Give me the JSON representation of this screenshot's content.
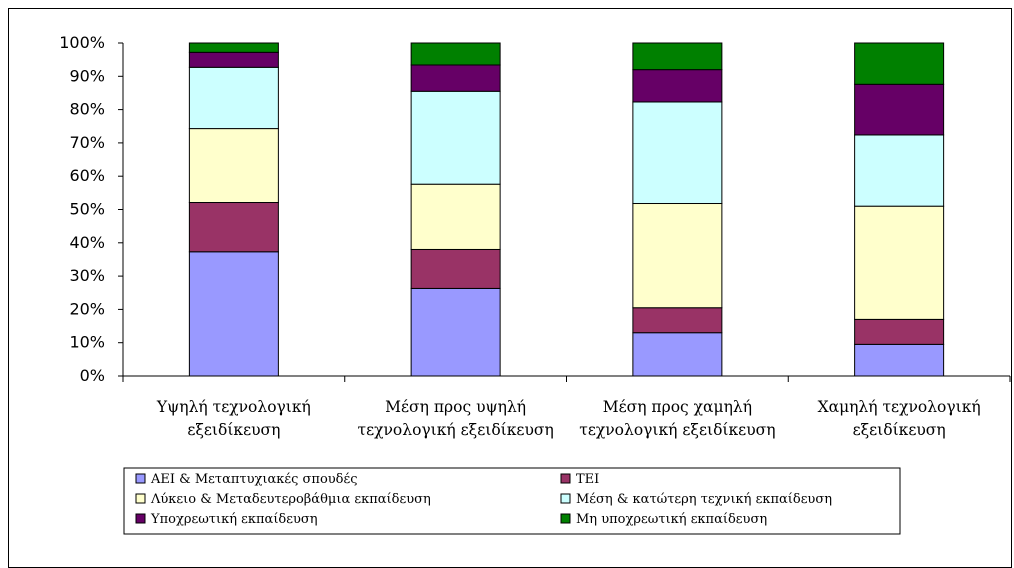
{
  "chart_data": {
    "type": "bar",
    "stacked": "percent",
    "categories": [
      [
        "Υψηλή τεχνολογική",
        "εξειδίκευση"
      ],
      [
        "Μέση προς υψηλή",
        "τεχνολογική εξειδίκευση"
      ],
      [
        "Μέση προς χαμηλή",
        "τεχνολογική εξειδίκευση"
      ],
      [
        "Χαμηλή τεχνολογική",
        "εξειδίκευση"
      ]
    ],
    "ylim": [
      0,
      100
    ],
    "yticks": [
      "0%",
      "10%",
      "20%",
      "30%",
      "40%",
      "50%",
      "60%",
      "70%",
      "80%",
      "90%",
      "100%"
    ],
    "legend_position": "bottom",
    "series": [
      {
        "name": "ΑΕΙ & Μεταπτυχιακές σπουδές",
        "color": "#9999FF",
        "values": [
          37.3,
          26.3,
          13.0,
          9.5
        ]
      },
      {
        "name": "ΤΕΙ",
        "color": "#993366",
        "values": [
          14.8,
          11.7,
          7.5,
          7.5
        ]
      },
      {
        "name": "Λύκειο & Μεταδευτεροβάθμια εκπαίδευση",
        "color": "#FFFFCC",
        "values": [
          22.2,
          19.6,
          31.3,
          34.0
        ]
      },
      {
        "name": "Μέση & κατώτερη τεχνική εκπαίδευση",
        "color": "#CCFFFF",
        "values": [
          18.4,
          27.9,
          30.5,
          21.4
        ]
      },
      {
        "name": "Υποχρεωτική εκπαίδευση",
        "color": "#660066",
        "values": [
          4.5,
          7.9,
          9.7,
          15.2
        ]
      },
      {
        "name": "Μη υποχρεωτική εκπαίδευση",
        "color": "#008000",
        "values": [
          2.8,
          6.6,
          8.0,
          12.4
        ]
      }
    ]
  }
}
